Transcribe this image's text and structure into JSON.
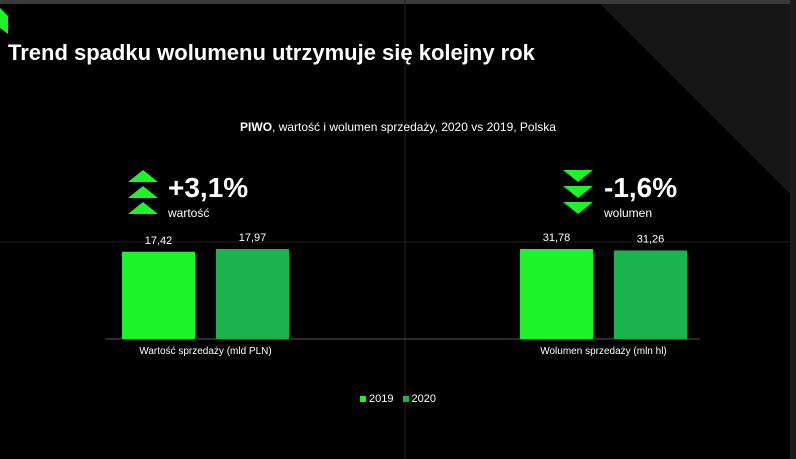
{
  "slide": {
    "title": "Trend spadku wolumenu utrzymuje się kolejny rok",
    "subtitle_bold": "PIWO",
    "subtitle_rest": ", wartość i wolumen sprzedaży, 2020 vs 2019, Polska"
  },
  "kpis": [
    {
      "value": "+3,1%",
      "label": "wartość",
      "direction": "up",
      "icon": "chevrons-up-icon"
    },
    {
      "value": "-1,6%",
      "label": "wolumen",
      "direction": "down",
      "icon": "chevrons-down-icon"
    }
  ],
  "colors": {
    "background": "#000000",
    "series_2019": "#1df22a",
    "series_2020": "#1ab34f",
    "text": "#ffffff",
    "chevron": "#1df22a"
  },
  "chart_data": {
    "type": "bar",
    "categories": [
      "Wartość sprzedaży (mld PLN)",
      "Wolumen sprzedaży (mln hl)"
    ],
    "series": [
      {
        "name": "2019",
        "values": [
          17.42,
          31.78
        ],
        "labels": [
          "17,42",
          "31,78"
        ]
      },
      {
        "name": "2020",
        "values": [
          17.97,
          31.26
        ],
        "labels": [
          "17,97",
          "31,26"
        ]
      }
    ],
    "title": "PIWO, wartość i wolumen sprzedaży, 2020 vs 2019, Polska",
    "legend": "bottom-center",
    "grid": false
  }
}
